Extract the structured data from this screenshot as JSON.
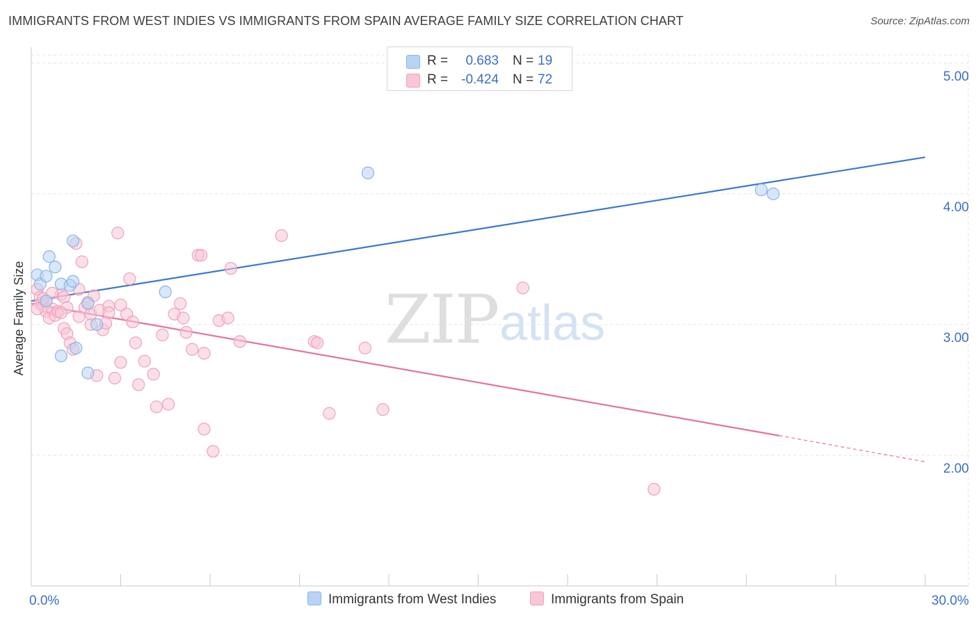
{
  "header": {
    "title": "IMMIGRANTS FROM WEST INDIES VS IMMIGRANTS FROM SPAIN AVERAGE FAMILY SIZE CORRELATION CHART",
    "source": "Source: ZipAtlas.com"
  },
  "watermark": {
    "zip": "ZIP",
    "atlas": "atlas"
  },
  "legend": {
    "series1": {
      "r_label": "R =",
      "r_value": "0.683",
      "n_label": "N =",
      "n_value": "19"
    },
    "series2": {
      "r_label": "R =",
      "r_value": "-0.424",
      "n_label": "N =",
      "n_value": "72"
    }
  },
  "colors": {
    "blue_fill": "#b8d3f4",
    "blue_stroke": "#8ab4e8",
    "blue_line": "#3a78d0",
    "pink_fill": "#f9c6d6",
    "pink_stroke": "#eea0bb",
    "pink_line": "#e4739b",
    "axis_label": "#3a6fc4",
    "grid": "#e3e3e3"
  },
  "chart_data": {
    "type": "scatter",
    "title": "IMMIGRANTS FROM WEST INDIES VS IMMIGRANTS FROM SPAIN AVERAGE FAMILY SIZE CORRELATION CHART",
    "xlabel": "",
    "ylabel": "Average Family Size",
    "xlim": [
      0,
      30
    ],
    "ylim": [
      1.0,
      5.1
    ],
    "x_tick_labels": [
      "0.0%",
      "30.0%"
    ],
    "y_ticks": [
      2.0,
      3.0,
      4.0,
      5.0
    ],
    "y_tick_labels": [
      "2.00",
      "3.00",
      "4.00",
      "5.00"
    ],
    "grid": true,
    "series": [
      {
        "name": "Immigrants from West Indies",
        "color": "#b8d3f4",
        "points": [
          [
            0.2,
            3.38
          ],
          [
            0.3,
            3.31
          ],
          [
            0.5,
            3.37
          ],
          [
            0.6,
            3.52
          ],
          [
            0.8,
            3.44
          ],
          [
            1.0,
            3.31
          ],
          [
            1.3,
            3.3
          ],
          [
            1.4,
            3.33
          ],
          [
            1.4,
            3.64
          ],
          [
            1.0,
            2.76
          ],
          [
            1.5,
            2.82
          ],
          [
            1.9,
            3.16
          ],
          [
            2.2,
            3.0
          ],
          [
            1.9,
            2.63
          ],
          [
            4.5,
            3.25
          ],
          [
            11.3,
            4.16
          ],
          [
            24.5,
            4.03
          ],
          [
            24.9,
            4.0
          ],
          [
            0.5,
            3.18
          ]
        ],
        "trend": {
          "x": [
            0,
            30
          ],
          "y": [
            3.18,
            4.28
          ],
          "style": "solid"
        }
      },
      {
        "name": "Immigrants from Spain",
        "color": "#f9c6d6",
        "points": [
          [
            0.2,
            3.27
          ],
          [
            0.3,
            3.21
          ],
          [
            0.3,
            3.16
          ],
          [
            0.4,
            3.14
          ],
          [
            0.5,
            3.1
          ],
          [
            0.5,
            3.18
          ],
          [
            0.6,
            3.05
          ],
          [
            0.7,
            3.12
          ],
          [
            0.8,
            3.07
          ],
          [
            0.9,
            3.1
          ],
          [
            1.0,
            3.23
          ],
          [
            1.1,
            3.21
          ],
          [
            1.1,
            2.97
          ],
          [
            1.2,
            2.93
          ],
          [
            1.3,
            2.86
          ],
          [
            1.4,
            2.81
          ],
          [
            1.5,
            3.62
          ],
          [
            1.6,
            3.27
          ],
          [
            1.7,
            3.48
          ],
          [
            1.8,
            3.13
          ],
          [
            1.9,
            3.17
          ],
          [
            2.0,
            3.0
          ],
          [
            2.0,
            3.08
          ],
          [
            2.1,
            3.22
          ],
          [
            2.2,
            2.61
          ],
          [
            2.3,
            3.11
          ],
          [
            2.4,
            2.96
          ],
          [
            2.5,
            3.01
          ],
          [
            2.6,
            3.14
          ],
          [
            2.8,
            2.59
          ],
          [
            2.9,
            3.7
          ],
          [
            3.0,
            2.71
          ],
          [
            3.2,
            3.08
          ],
          [
            3.3,
            3.35
          ],
          [
            3.4,
            3.02
          ],
          [
            3.5,
            2.86
          ],
          [
            3.6,
            2.54
          ],
          [
            3.8,
            2.72
          ],
          [
            4.1,
            2.62
          ],
          [
            4.2,
            2.37
          ],
          [
            4.4,
            2.92
          ],
          [
            4.6,
            2.39
          ],
          [
            4.8,
            3.08
          ],
          [
            5.0,
            3.16
          ],
          [
            5.1,
            3.05
          ],
          [
            5.2,
            2.94
          ],
          [
            5.4,
            2.81
          ],
          [
            5.6,
            3.53
          ],
          [
            5.7,
            3.53
          ],
          [
            5.8,
            2.78
          ],
          [
            5.8,
            2.2
          ],
          [
            6.1,
            2.03
          ],
          [
            6.3,
            3.03
          ],
          [
            6.6,
            3.05
          ],
          [
            6.7,
            3.43
          ],
          [
            7.0,
            2.87
          ],
          [
            8.4,
            3.68
          ],
          [
            9.5,
            2.87
          ],
          [
            9.6,
            2.86
          ],
          [
            10.0,
            2.32
          ],
          [
            11.2,
            2.82
          ],
          [
            11.8,
            2.35
          ],
          [
            16.5,
            3.28
          ],
          [
            20.9,
            1.74
          ],
          [
            0.2,
            3.12
          ],
          [
            0.4,
            3.2
          ],
          [
            0.7,
            3.24
          ],
          [
            1.2,
            3.13
          ],
          [
            1.6,
            3.06
          ],
          [
            2.6,
            3.09
          ],
          [
            3.0,
            3.15
          ],
          [
            1.0,
            3.09
          ]
        ],
        "trend": {
          "x": [
            0,
            25.1
          ],
          "y": [
            3.16,
            2.15
          ],
          "style": "solid",
          "dashed_extension": {
            "x": [
              25.1,
              30
            ],
            "y": [
              2.15,
              1.95
            ]
          }
        }
      }
    ],
    "legend_position": "top-center"
  },
  "bottom_legend": {
    "items": [
      {
        "label": "Immigrants from West Indies"
      },
      {
        "label": "Immigrants from Spain"
      }
    ]
  }
}
